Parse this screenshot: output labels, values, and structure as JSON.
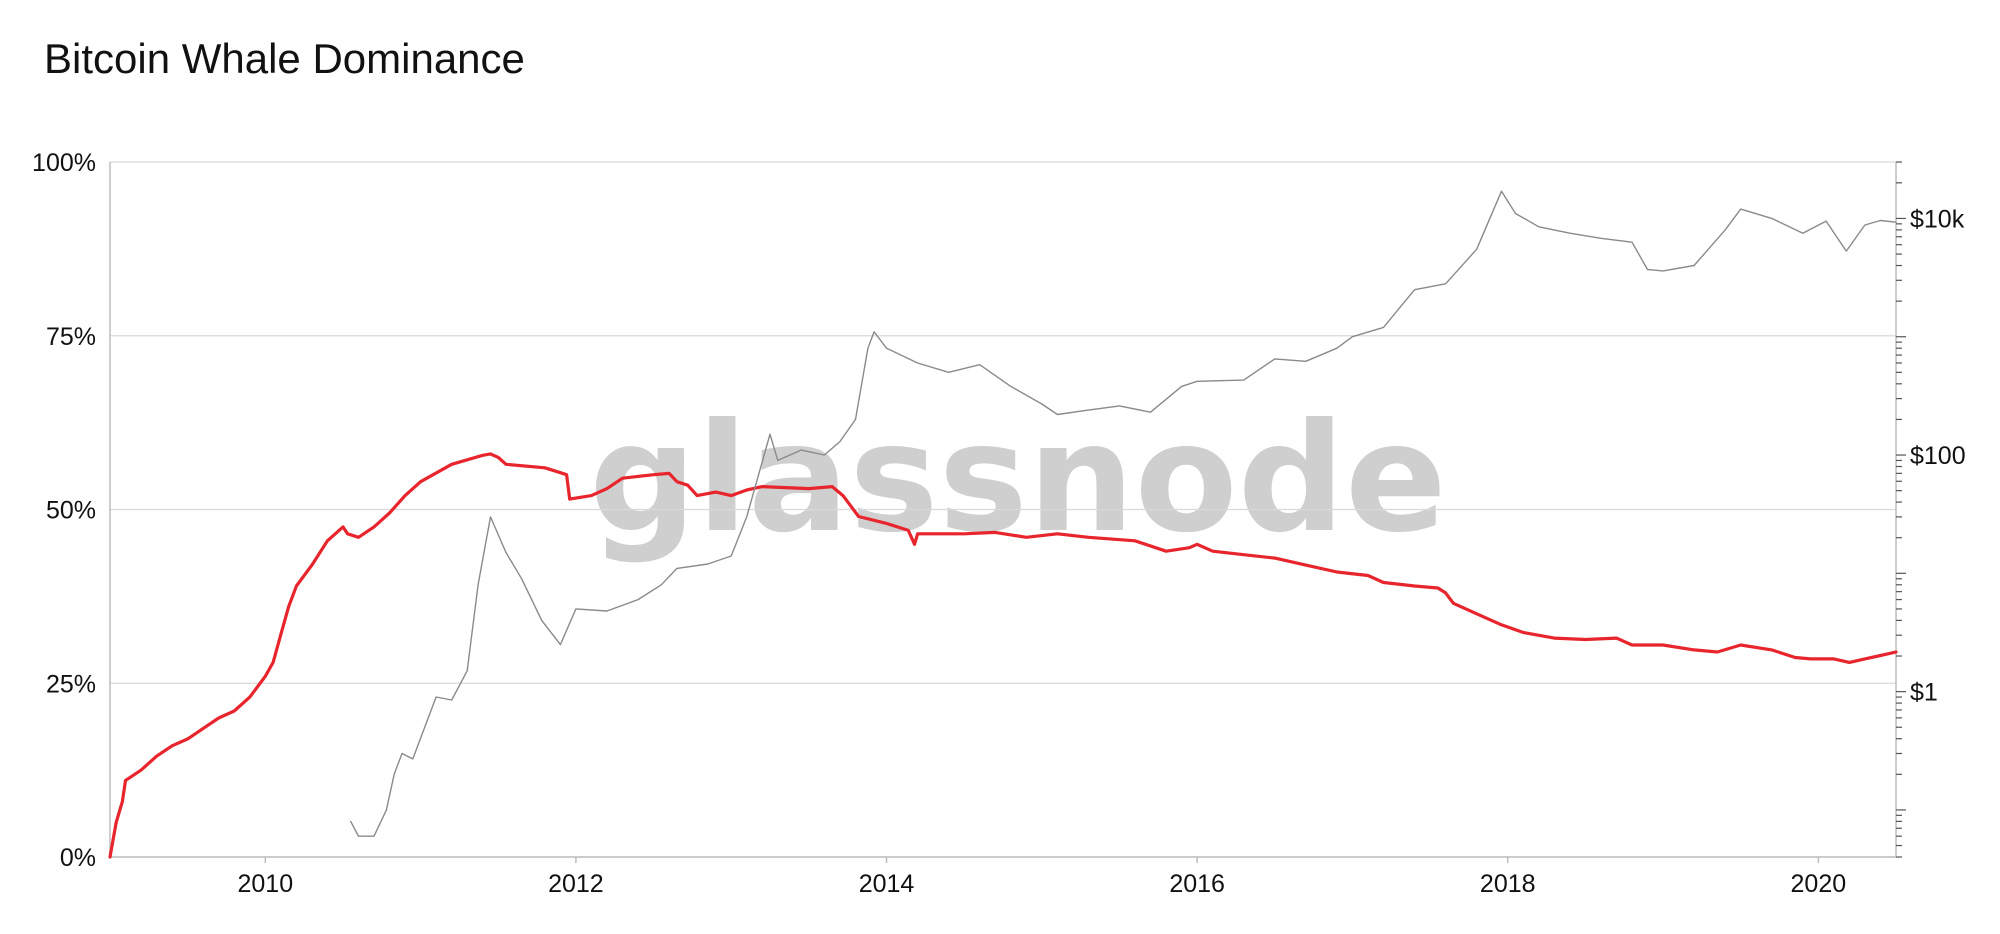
{
  "chart_data": {
    "type": "line",
    "title": "Bitcoin Whale Dominance",
    "watermark": "glassnode",
    "x_range": [
      2009.0,
      2020.5
    ],
    "x_ticks": [
      {
        "value": 2010,
        "label": "2010"
      },
      {
        "value": 2012,
        "label": "2012"
      },
      {
        "value": 2014,
        "label": "2014"
      },
      {
        "value": 2016,
        "label": "2016"
      },
      {
        "value": 2018,
        "label": "2018"
      },
      {
        "value": 2020,
        "label": "2020"
      }
    ],
    "y_left": {
      "range": [
        0,
        100
      ],
      "ticks": [
        {
          "value": 0,
          "label": "0%"
        },
        {
          "value": 25,
          "label": "25%"
        },
        {
          "value": 50,
          "label": "50%"
        },
        {
          "value": 75,
          "label": "75%"
        },
        {
          "value": 100,
          "label": "100%"
        }
      ],
      "grid": true
    },
    "y_right": {
      "scale": "log",
      "range": [
        0.04,
        30000
      ],
      "ticks": [
        {
          "value": 1,
          "label": "$1"
        },
        {
          "value": 100,
          "label": "$100"
        },
        {
          "value": 10000,
          "label": "$10k"
        }
      ]
    },
    "series": [
      {
        "axis": "left",
        "color": "#e8242c",
        "points": [
          [
            2009.0,
            0
          ],
          [
            2009.04,
            5
          ],
          [
            2009.08,
            8
          ],
          [
            2009.1,
            11
          ],
          [
            2009.2,
            12.5
          ],
          [
            2009.3,
            14.5
          ],
          [
            2009.4,
            16
          ],
          [
            2009.5,
            17
          ],
          [
            2009.6,
            18.5
          ],
          [
            2009.7,
            20
          ],
          [
            2009.8,
            21
          ],
          [
            2009.9,
            23
          ],
          [
            2010.0,
            26
          ],
          [
            2010.05,
            28
          ],
          [
            2010.1,
            32
          ],
          [
            2010.15,
            36
          ],
          [
            2010.2,
            39
          ],
          [
            2010.3,
            42
          ],
          [
            2010.4,
            45.5
          ],
          [
            2010.5,
            47.5
          ],
          [
            2010.53,
            46.5
          ],
          [
            2010.6,
            46
          ],
          [
            2010.7,
            47.5
          ],
          [
            2010.8,
            49.5
          ],
          [
            2010.9,
            52
          ],
          [
            2011.0,
            54
          ],
          [
            2011.2,
            56.5
          ],
          [
            2011.4,
            57.8
          ],
          [
            2011.45,
            58
          ],
          [
            2011.5,
            57.5
          ],
          [
            2011.55,
            56.5
          ],
          [
            2011.8,
            56
          ],
          [
            2011.9,
            55.3
          ],
          [
            2011.94,
            55
          ],
          [
            2011.96,
            51.5
          ],
          [
            2012.1,
            52
          ],
          [
            2012.2,
            53
          ],
          [
            2012.3,
            54.5
          ],
          [
            2012.5,
            55
          ],
          [
            2012.6,
            55.2
          ],
          [
            2012.65,
            54
          ],
          [
            2012.72,
            53.5
          ],
          [
            2012.78,
            52
          ],
          [
            2012.9,
            52.5
          ],
          [
            2013.0,
            52
          ],
          [
            2013.1,
            52.8
          ],
          [
            2013.2,
            53.3
          ],
          [
            2013.5,
            53
          ],
          [
            2013.65,
            53.3
          ],
          [
            2013.72,
            52
          ],
          [
            2013.82,
            49
          ],
          [
            2014.0,
            48
          ],
          [
            2014.14,
            47
          ],
          [
            2014.18,
            45
          ],
          [
            2014.2,
            46.5
          ],
          [
            2014.5,
            46.5
          ],
          [
            2014.7,
            46.7
          ],
          [
            2014.9,
            46
          ],
          [
            2015.1,
            46.5
          ],
          [
            2015.3,
            46
          ],
          [
            2015.6,
            45.5
          ],
          [
            2015.8,
            44
          ],
          [
            2015.95,
            44.5
          ],
          [
            2016.0,
            45
          ],
          [
            2016.1,
            44
          ],
          [
            2016.3,
            43.5
          ],
          [
            2016.5,
            43
          ],
          [
            2016.7,
            42
          ],
          [
            2016.9,
            41
          ],
          [
            2017.1,
            40.5
          ],
          [
            2017.2,
            39.5
          ],
          [
            2017.4,
            39
          ],
          [
            2017.55,
            38.7
          ],
          [
            2017.6,
            38
          ],
          [
            2017.65,
            36.5
          ],
          [
            2017.8,
            35
          ],
          [
            2017.95,
            33.5
          ],
          [
            2018.1,
            32.3
          ],
          [
            2018.3,
            31.5
          ],
          [
            2018.5,
            31.3
          ],
          [
            2018.7,
            31.5
          ],
          [
            2018.8,
            30.5
          ],
          [
            2019.0,
            30.5
          ],
          [
            2019.2,
            29.8
          ],
          [
            2019.35,
            29.5
          ],
          [
            2019.5,
            30.5
          ],
          [
            2019.7,
            29.8
          ],
          [
            2019.85,
            28.7
          ],
          [
            2019.95,
            28.5
          ],
          [
            2020.1,
            28.5
          ],
          [
            2020.2,
            28
          ],
          [
            2020.3,
            28.5
          ],
          [
            2020.4,
            29
          ],
          [
            2020.5,
            29.5
          ]
        ]
      },
      {
        "axis": "right",
        "color": "#8a8a8a",
        "points": [
          [
            2010.55,
            0.08
          ],
          [
            2010.6,
            0.06
          ],
          [
            2010.7,
            0.06
          ],
          [
            2010.78,
            0.1
          ],
          [
            2010.83,
            0.2
          ],
          [
            2010.88,
            0.3
          ],
          [
            2010.95,
            0.27
          ],
          [
            2011.1,
            0.9
          ],
          [
            2011.2,
            0.85
          ],
          [
            2011.3,
            1.5
          ],
          [
            2011.37,
            8
          ],
          [
            2011.45,
            30
          ],
          [
            2011.55,
            15
          ],
          [
            2011.65,
            9
          ],
          [
            2011.78,
            4
          ],
          [
            2011.9,
            2.5
          ],
          [
            2012.0,
            5
          ],
          [
            2012.2,
            4.8
          ],
          [
            2012.4,
            6
          ],
          [
            2012.55,
            8
          ],
          [
            2012.65,
            11
          ],
          [
            2012.85,
            12
          ],
          [
            2013.0,
            14
          ],
          [
            2013.1,
            30
          ],
          [
            2013.25,
            150
          ],
          [
            2013.3,
            90
          ],
          [
            2013.45,
            110
          ],
          [
            2013.6,
            100
          ],
          [
            2013.7,
            130
          ],
          [
            2013.8,
            200
          ],
          [
            2013.88,
            800
          ],
          [
            2013.92,
            1100
          ],
          [
            2014.0,
            800
          ],
          [
            2014.2,
            600
          ],
          [
            2014.4,
            500
          ],
          [
            2014.6,
            580
          ],
          [
            2014.8,
            380
          ],
          [
            2015.0,
            270
          ],
          [
            2015.1,
            220
          ],
          [
            2015.3,
            240
          ],
          [
            2015.5,
            260
          ],
          [
            2015.7,
            230
          ],
          [
            2015.9,
            380
          ],
          [
            2016.0,
            420
          ],
          [
            2016.3,
            430
          ],
          [
            2016.5,
            650
          ],
          [
            2016.7,
            620
          ],
          [
            2016.9,
            800
          ],
          [
            2017.0,
            1000
          ],
          [
            2017.2,
            1200
          ],
          [
            2017.4,
            2500
          ],
          [
            2017.6,
            2800
          ],
          [
            2017.8,
            5500
          ],
          [
            2017.96,
            17000
          ],
          [
            2018.05,
            11000
          ],
          [
            2018.2,
            8500
          ],
          [
            2018.4,
            7500
          ],
          [
            2018.6,
            6800
          ],
          [
            2018.8,
            6300
          ],
          [
            2018.9,
            3700
          ],
          [
            2019.0,
            3600
          ],
          [
            2019.2,
            4000
          ],
          [
            2019.4,
            8000
          ],
          [
            2019.5,
            12000
          ],
          [
            2019.7,
            10000
          ],
          [
            2019.9,
            7500
          ],
          [
            2020.05,
            9500
          ],
          [
            2020.18,
            5300
          ],
          [
            2020.3,
            8800
          ],
          [
            2020.4,
            9600
          ],
          [
            2020.5,
            9300
          ]
        ]
      }
    ]
  }
}
